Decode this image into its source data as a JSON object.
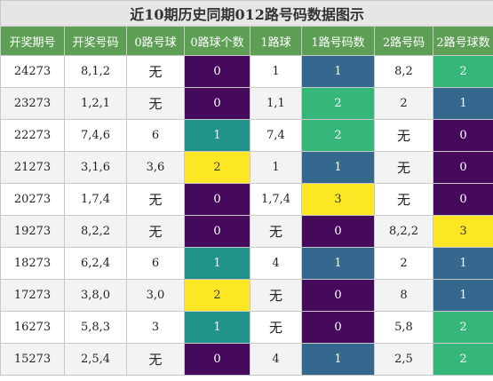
{
  "title": "近10期历史同期012路号码数据图示",
  "headers": [
    "开奖期号",
    "开奖号码",
    "0路号球",
    "0路球个数",
    "1路球",
    "1路号码数",
    "2路号码",
    "2路号球数"
  ],
  "rows": [
    {
      "period": "24273",
      "numbers": "8,1,2",
      "zero_balls": "无",
      "zero_count": "0",
      "one_balls": "1",
      "one_count": "1",
      "two_balls": "8,2",
      "two_count": "2"
    },
    {
      "period": "23273",
      "numbers": "1,2,1",
      "zero_balls": "无",
      "zero_count": "0",
      "one_balls": "1,1",
      "one_count": "2",
      "two_balls": "2",
      "two_count": "1"
    },
    {
      "period": "22273",
      "numbers": "7,4,6",
      "zero_balls": "6",
      "zero_count": "1",
      "one_balls": "7,4",
      "one_count": "2",
      "two_balls": "无",
      "two_count": "0"
    },
    {
      "period": "21273",
      "numbers": "3,1,6",
      "zero_balls": "3,6",
      "zero_count": "2",
      "one_balls": "1",
      "one_count": "1",
      "two_balls": "无",
      "two_count": "0"
    },
    {
      "period": "20273",
      "numbers": "1,7,4",
      "zero_balls": "无",
      "zero_count": "0",
      "one_balls": "1,7,4",
      "one_count": "3",
      "two_balls": "无",
      "two_count": "0"
    },
    {
      "period": "19273",
      "numbers": "8,2,2",
      "zero_balls": "无",
      "zero_count": "0",
      "one_balls": "无",
      "one_count": "0",
      "two_balls": "8,2,2",
      "two_count": "3"
    },
    {
      "period": "18273",
      "numbers": "6,2,4",
      "zero_balls": "6",
      "zero_count": "1",
      "one_balls": "4",
      "one_count": "1",
      "two_balls": "2",
      "two_count": "1"
    },
    {
      "period": "17273",
      "numbers": "3,8,0",
      "zero_balls": "3,0",
      "zero_count": "2",
      "one_balls": "无",
      "one_count": "0",
      "two_balls": "8",
      "two_count": "1"
    },
    {
      "period": "16273",
      "numbers": "5,8,3",
      "zero_balls": "3",
      "zero_count": "1",
      "one_balls": "无",
      "one_count": "0",
      "two_balls": "5,8",
      "two_count": "2"
    },
    {
      "period": "15273",
      "numbers": "2,5,4",
      "zero_balls": "无",
      "zero_count": "0",
      "one_balls": "4",
      "one_count": "1",
      "two_balls": "2,5",
      "two_count": "2"
    }
  ],
  "colors": {
    "count_0": "#450a5c",
    "count_1_blue": "#34688f",
    "count_1_teal": "#22938a",
    "count_2_green": "#35b779",
    "count_2_or_3_yellow": "#fde725",
    "header_green": "#5e9f56",
    "title_gray": "#e6e6e6"
  }
}
